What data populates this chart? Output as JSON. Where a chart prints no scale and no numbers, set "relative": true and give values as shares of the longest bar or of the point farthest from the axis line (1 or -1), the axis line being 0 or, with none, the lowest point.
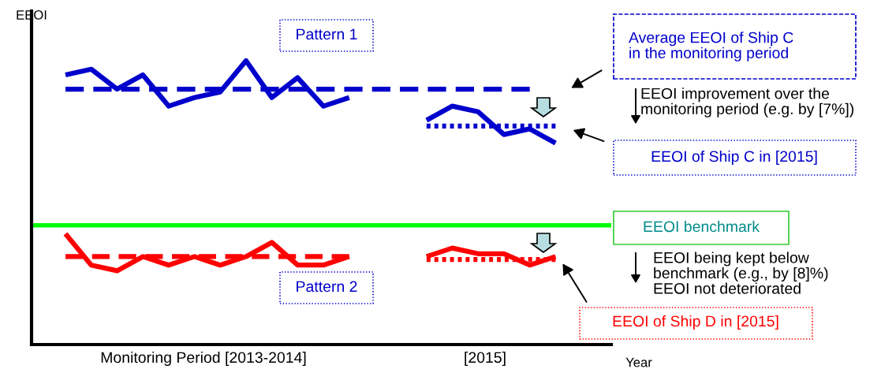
{
  "chart_data": {
    "type": "line",
    "relative": true,
    "ylabel": "EEOI",
    "xlabel": "Year",
    "categories": [
      null,
      null,
      null,
      null,
      null,
      null,
      null,
      null,
      null,
      null,
      null,
      null,
      null,
      null,
      null,
      null,
      null,
      null,
      null,
      null
    ],
    "series": [
      {
        "color": "#0000cc",
        "line_style": "solid",
        "values": [
          0.95,
          0.97,
          0.9,
          0.95,
          0.84,
          0.87,
          0.89,
          1.0,
          0.87,
          0.94,
          0.84,
          0.87,
          null,
          null,
          0.79,
          0.84,
          0.82,
          0.74,
          0.76,
          0.71
        ]
      },
      {
        "color": "#0000cc",
        "line_style": "dashed",
        "values": [
          0.9,
          0.9,
          0.9,
          0.9,
          0.9,
          0.9,
          0.9,
          0.9,
          0.9,
          0.9,
          0.9,
          0.9,
          0.9,
          0.9,
          0.9,
          0.9,
          0.9,
          0.9,
          0.9,
          null
        ]
      },
      {
        "color": "#0000cc",
        "line_style": "dotted",
        "values": [
          null,
          null,
          null,
          null,
          null,
          null,
          null,
          null,
          null,
          null,
          null,
          null,
          null,
          null,
          0.77,
          0.77,
          0.77,
          0.77,
          0.77,
          0.77
        ]
      },
      {
        "color": "#ff0000",
        "line_style": "solid",
        "values": [
          0.39,
          0.28,
          0.26,
          0.31,
          0.28,
          0.31,
          0.28,
          0.31,
          0.36,
          0.28,
          0.28,
          0.31,
          null,
          null,
          0.31,
          0.34,
          0.32,
          0.32,
          0.28,
          0.31
        ]
      },
      {
        "color": "#ff0000",
        "line_style": "dashed",
        "values": [
          0.31,
          0.31,
          0.31,
          0.31,
          0.31,
          0.31,
          0.31,
          0.31,
          0.31,
          0.31,
          0.31,
          0.31,
          null,
          null,
          null,
          null,
          null,
          null,
          null,
          null
        ]
      },
      {
        "color": "#ff0000",
        "line_style": "dotted",
        "values": [
          null,
          null,
          null,
          null,
          null,
          null,
          null,
          null,
          null,
          null,
          null,
          null,
          null,
          null,
          0.3,
          0.3,
          0.3,
          0.3,
          0.3,
          0.3
        ]
      }
    ],
    "ref_lines": [
      {
        "axis": "y",
        "value": 0.42,
        "label": "EEOI benchmark",
        "color": "#00ff00",
        "line_style": "solid"
      }
    ],
    "annotations": [
      "Pattern 1",
      "Pattern 2",
      "Average EEOI of Ship C\nin the monitoring period",
      "EEOI improvement over the\nmonitoring period (e.g. by [7%])",
      "EEOI of Ship C in [2015]",
      "EEOI being kept below\nbenchmark (e.g., by [8]%)\nEEOI not deteriorated",
      "EEOI of Ship D in [2015]",
      "Monitoring Period [2013-2014]",
      "[2015]"
    ],
    "grid": false
  }
}
